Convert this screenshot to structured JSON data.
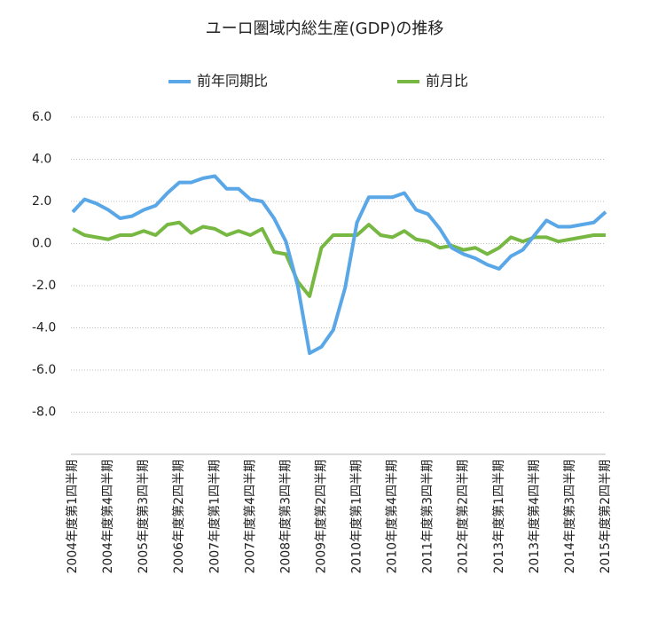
{
  "chart_data": {
    "type": "line",
    "title": "ユーロ圏域内総生産(GDP)の推移",
    "categories": [
      "2004年度第1四半期",
      null,
      null,
      "2004年度第4四半期",
      null,
      null,
      "2005年度第3四半期",
      null,
      null,
      "2006年度第2四半期",
      null,
      null,
      "2007年度第1四半期",
      null,
      null,
      "2007年度第4四半期",
      null,
      null,
      "2008年度第3四半期",
      null,
      null,
      "2009年度第2四半期",
      null,
      null,
      "2010年度第1四半期",
      null,
      null,
      "2010年度第4四半期",
      null,
      null,
      "2011年度第3四半期",
      null,
      null,
      "2012年度第2四半期",
      null,
      null,
      "2013年度第1四半期",
      null,
      null,
      "2013年度第4四半期",
      null,
      null,
      "2014年度第3四半期",
      null,
      null,
      "2015年度第2四半期"
    ],
    "series": [
      {
        "name": "前年同期比",
        "color": "#5aa7e8",
        "values": [
          1.5,
          2.1,
          1.9,
          1.6,
          1.2,
          1.3,
          1.6,
          1.8,
          2.4,
          2.9,
          2.9,
          3.1,
          3.2,
          2.6,
          2.6,
          2.1,
          2.0,
          1.2,
          0.1,
          -2.0,
          -5.2,
          -4.9,
          -4.1,
          -2.1,
          1.0,
          2.2,
          2.2,
          2.2,
          2.4,
          1.6,
          1.4,
          0.7,
          -0.2,
          -0.5,
          -0.7,
          -1.0,
          -1.2,
          -0.6,
          -0.3,
          0.4,
          1.1,
          0.8,
          0.8,
          0.9,
          1.0,
          1.5
        ]
      },
      {
        "name": "前月比",
        "color": "#77b843",
        "values": [
          0.7,
          0.4,
          0.3,
          0.2,
          0.4,
          0.4,
          0.6,
          0.4,
          0.9,
          1.0,
          0.5,
          0.8,
          0.7,
          0.4,
          0.6,
          0.4,
          0.7,
          -0.4,
          -0.5,
          -1.8,
          -2.5,
          -0.2,
          0.4,
          0.4,
          0.4,
          0.9,
          0.4,
          0.3,
          0.6,
          0.2,
          0.1,
          -0.2,
          -0.1,
          -0.3,
          -0.2,
          -0.5,
          -0.2,
          0.3,
          0.1,
          0.3,
          0.3,
          0.1,
          0.2,
          0.3,
          0.4,
          0.4
        ]
      }
    ],
    "ylim": [
      -10,
      6
    ],
    "yticks": [
      {
        "value": 6,
        "label": "6.0"
      },
      {
        "value": 4,
        "label": "4.0"
      },
      {
        "value": 2,
        "label": "2.0"
      },
      {
        "value": 0,
        "label": "0.0"
      },
      {
        "value": -2,
        "label": "-2.0"
      },
      {
        "value": -4,
        "label": "-4.0"
      },
      {
        "value": -6,
        "label": "-6.0"
      },
      {
        "value": -8,
        "label": "-8.0"
      }
    ],
    "grid": true,
    "legend": "top"
  }
}
